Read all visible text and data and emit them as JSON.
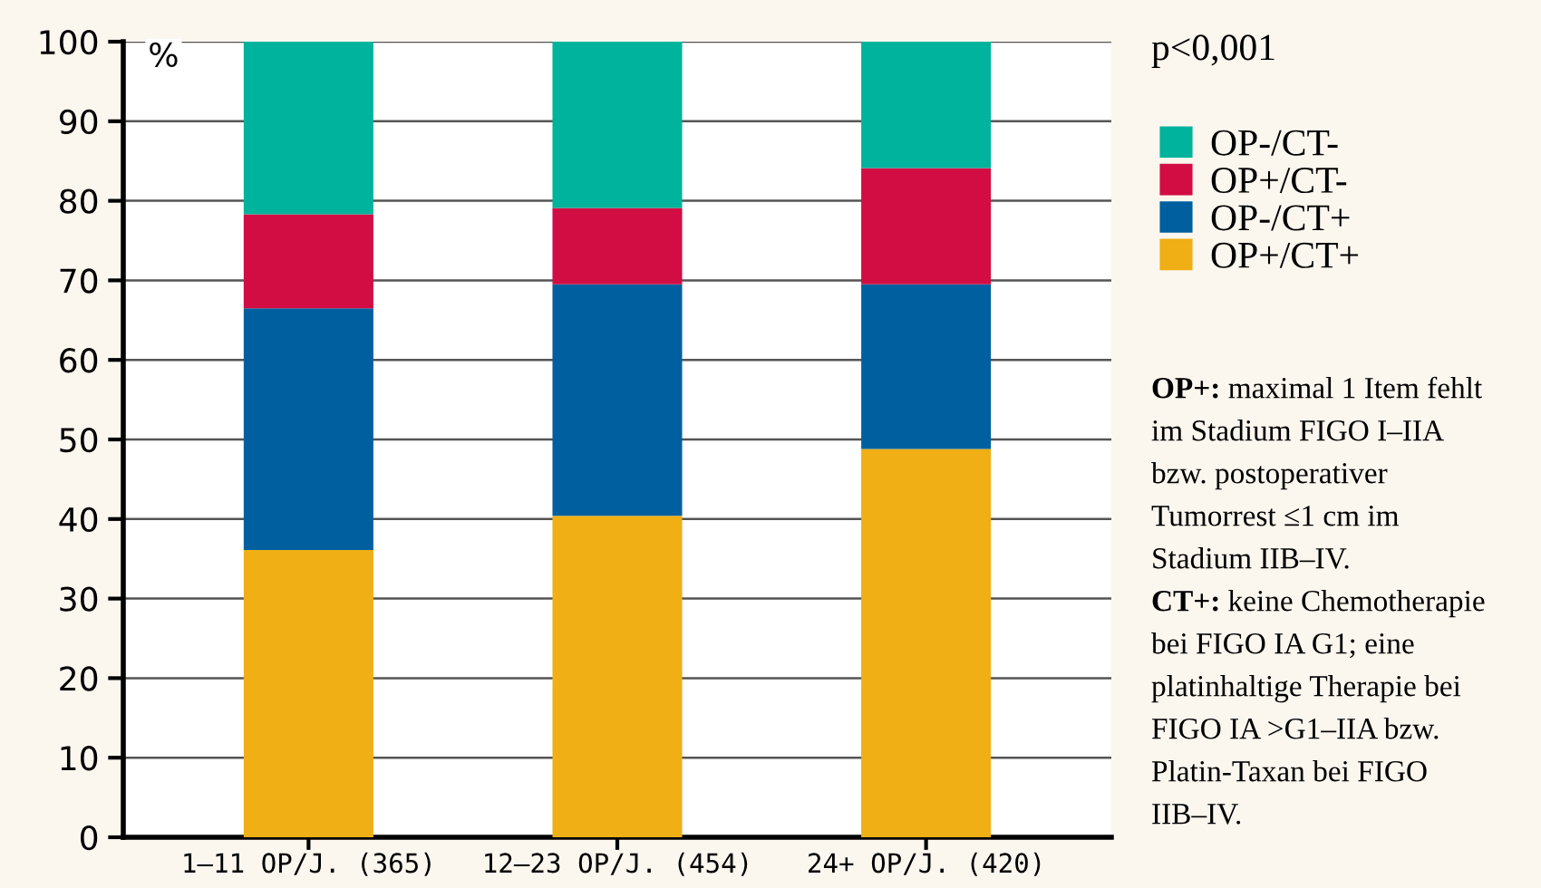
{
  "chart_data": {
    "type": "bar",
    "stacked": true,
    "ylabel": "%",
    "categories": [
      "1–11 OP/J. (365)",
      "12–23 OP/J. (454)",
      "24+ OP/J. (420)"
    ],
    "series": [
      {
        "name": "OP+/CT+",
        "color": "#efaf15",
        "values": [
          36.1,
          40.4,
          48.8
        ]
      },
      {
        "name": "OP-/CT+",
        "color": "#00609f",
        "values": [
          30.4,
          29.1,
          20.7
        ]
      },
      {
        "name": "OP+/CT-",
        "color": "#d20d43",
        "values": [
          11.8,
          9.6,
          14.6
        ]
      },
      {
        "name": "OP-/CT-",
        "color": "#00b39c",
        "values": [
          21.7,
          20.9,
          15.9
        ]
      }
    ],
    "ylim": [
      0,
      100
    ],
    "yticks": [
      0,
      10,
      20,
      30,
      40,
      50,
      60,
      70,
      80,
      90,
      100
    ],
    "grid": "y",
    "legend": "right",
    "annotations": [
      "p<0,001",
      "OP+: maximal 1 Item fehlt im Stadium FIGO I–IIA bzw. postoperativer Tumorrest ≤1 cm im Stadium IIB–IV.",
      "CT+: keine Chemotherapie bei FIGO IA G1; eine platinhaltige Therapie bei FIGO IA >G1–IIA bzw. Platin-Taxan bei FIGO IIB–IV."
    ]
  }
}
